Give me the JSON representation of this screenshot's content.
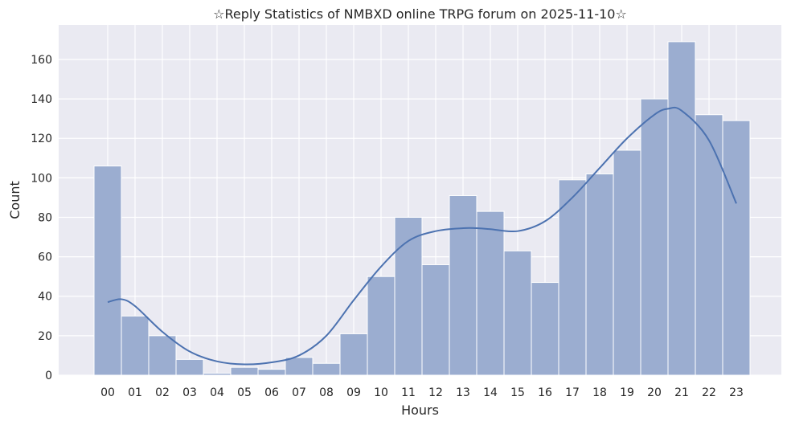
{
  "chart_data": {
    "type": "bar",
    "title": "☆Reply Statistics of NMBXD online TRPG forum on 2025-11-10☆",
    "xlabel": "Hours",
    "ylabel": "Count",
    "categories": [
      "00",
      "01",
      "02",
      "03",
      "04",
      "05",
      "06",
      "07",
      "08",
      "09",
      "10",
      "11",
      "12",
      "13",
      "14",
      "15",
      "16",
      "17",
      "18",
      "19",
      "20",
      "21",
      "22",
      "23"
    ],
    "values": [
      106,
      30,
      20,
      8,
      1,
      4,
      3,
      9,
      6,
      21,
      50,
      80,
      56,
      91,
      83,
      63,
      47,
      99,
      102,
      114,
      140,
      169,
      132,
      129
    ],
    "yticks": [
      0,
      20,
      40,
      60,
      80,
      100,
      120,
      140,
      160
    ],
    "ylim": [
      0,
      177.5
    ],
    "grid": true,
    "kde": {
      "name": "",
      "x": [
        0,
        0.5,
        1,
        2,
        3,
        4,
        5,
        6,
        7,
        8,
        9,
        10,
        11,
        12,
        13,
        13.5,
        14,
        15,
        16,
        17,
        18,
        19,
        20,
        20.5,
        21,
        22,
        23
      ],
      "y": [
        37,
        38.5,
        35,
        22,
        12,
        7,
        5.5,
        6.5,
        10,
        20,
        38,
        55,
        68,
        73,
        74.5,
        74.5,
        74,
        73,
        78,
        90,
        105,
        120,
        132,
        135,
        134,
        119,
        87
      ]
    },
    "colors": {
      "bar": "#9badd0",
      "bar_edge": "#ffffff",
      "kde_line": "#4c72b0",
      "plot_bg": "#eaeaf2",
      "grid": "#ffffff"
    }
  }
}
